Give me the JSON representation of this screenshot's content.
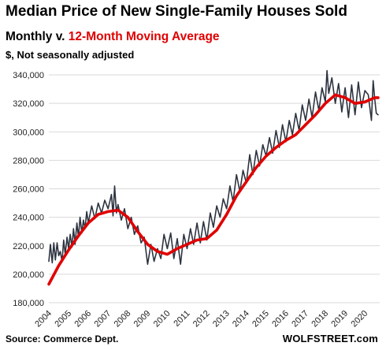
{
  "header": {
    "title": "Median Price of New Single-Family Houses Sold",
    "subtitle_part1": "Monthly v. ",
    "subtitle_part2": "12-Month Moving Average",
    "units": "$, Not seasonally adjusted"
  },
  "footer": {
    "source": "Source: Commerce Dept.",
    "brand": "WOLFSTREET.com"
  },
  "colors": {
    "monthly": "#2d3340",
    "moving_average": "#e00000",
    "grid": "#d9d9d9"
  },
  "chart_data": {
    "type": "line",
    "title": "Median Price of New Single-Family Houses Sold",
    "ylim": [
      180000,
      345000
    ],
    "xlim": [
      2004,
      2020.75
    ],
    "y_ticks": [
      "180,000",
      "200,000",
      "220,000",
      "240,000",
      "260,000",
      "280,000",
      "300,000",
      "320,000",
      "340,000"
    ],
    "y_tick_values": [
      180000,
      200000,
      220000,
      240000,
      260000,
      280000,
      300000,
      320000,
      340000
    ],
    "x_ticks": [
      "2004",
      "2005",
      "2006",
      "2007",
      "2008",
      "2009",
      "2010",
      "2011",
      "2012",
      "2013",
      "2014",
      "2015",
      "2016",
      "2017",
      "2018",
      "2019",
      "2020"
    ],
    "grid": "horizontal",
    "series": [
      {
        "name": "Monthly",
        "x": [
          2004.0,
          2004.08,
          2004.17,
          2004.25,
          2004.33,
          2004.42,
          2004.5,
          2004.58,
          2004.67,
          2004.75,
          2004.83,
          2004.92,
          2005.0,
          2005.08,
          2005.17,
          2005.25,
          2005.33,
          2005.42,
          2005.5,
          2005.58,
          2005.67,
          2005.75,
          2005.83,
          2005.92,
          2006.0,
          2006.17,
          2006.33,
          2006.5,
          2006.67,
          2006.83,
          2007.0,
          2007.17,
          2007.25,
          2007.33,
          2007.42,
          2007.5,
          2007.67,
          2007.83,
          2008.0,
          2008.17,
          2008.33,
          2008.5,
          2008.67,
          2008.83,
          2009.0,
          2009.17,
          2009.33,
          2009.5,
          2009.67,
          2009.83,
          2010.0,
          2010.17,
          2010.33,
          2010.5,
          2010.67,
          2010.83,
          2011.0,
          2011.17,
          2011.33,
          2011.5,
          2011.67,
          2011.83,
          2012.0,
          2012.17,
          2012.33,
          2012.5,
          2012.67,
          2012.83,
          2013.0,
          2013.17,
          2013.33,
          2013.5,
          2013.67,
          2013.83,
          2014.0,
          2014.17,
          2014.33,
          2014.5,
          2014.67,
          2014.83,
          2015.0,
          2015.17,
          2015.33,
          2015.5,
          2015.67,
          2015.83,
          2016.0,
          2016.17,
          2016.33,
          2016.5,
          2016.67,
          2016.83,
          2017.0,
          2017.17,
          2017.33,
          2017.5,
          2017.67,
          2017.83,
          2018.0,
          2018.08,
          2018.17,
          2018.33,
          2018.5,
          2018.67,
          2018.83,
          2019.0,
          2019.17,
          2019.33,
          2019.5,
          2019.67,
          2019.83,
          2020.0,
          2020.17,
          2020.33,
          2020.42,
          2020.5,
          2020.58,
          2020.67
        ],
        "values": [
          209000,
          221000,
          208000,
          222000,
          210000,
          222000,
          213000,
          216000,
          209000,
          224000,
          214000,
          226000,
          218000,
          228000,
          219000,
          232000,
          221000,
          236000,
          226000,
          240000,
          229000,
          238000,
          232000,
          244000,
          236000,
          248000,
          239000,
          250000,
          243000,
          252000,
          246000,
          256000,
          241000,
          262000,
          243000,
          249000,
          238000,
          246000,
          232000,
          240000,
          228000,
          234000,
          222000,
          226000,
          207000,
          221000,
          209000,
          218000,
          211000,
          228000,
          218000,
          229000,
          211000,
          225000,
          207000,
          228000,
          218000,
          232000,
          221000,
          236000,
          222000,
          237000,
          224000,
          243000,
          233000,
          248000,
          240000,
          253000,
          246000,
          262000,
          251000,
          270000,
          258000,
          273000,
          264000,
          284000,
          270000,
          287000,
          276000,
          291000,
          283000,
          296000,
          285000,
          301000,
          289000,
          305000,
          293000,
          308000,
          298000,
          313000,
          301000,
          319000,
          308000,
          323000,
          310000,
          328000,
          315000,
          331000,
          321000,
          343000,
          327000,
          338000,
          320000,
          334000,
          314000,
          331000,
          310000,
          333000,
          312000,
          335000,
          317000,
          329000,
          326000,
          308000,
          336000,
          323000,
          313000,
          312000
        ]
      },
      {
        "name": "12-Month Moving Average",
        "x": [
          2004.0,
          2004.5,
          2005.0,
          2005.5,
          2006.0,
          2006.5,
          2007.0,
          2007.5,
          2008.0,
          2008.5,
          2009.0,
          2009.5,
          2010.0,
          2010.5,
          2011.0,
          2011.5,
          2012.0,
          2012.5,
          2013.0,
          2013.5,
          2014.0,
          2014.5,
          2015.0,
          2015.5,
          2016.0,
          2016.5,
          2017.0,
          2017.5,
          2018.0,
          2018.5,
          2019.0,
          2019.5,
          2020.0,
          2020.5,
          2020.67
        ],
        "values": [
          193000,
          206000,
          217000,
          227000,
          236000,
          242000,
          244000,
          245000,
          240000,
          230000,
          221000,
          216000,
          214000,
          218000,
          221000,
          224000,
          225000,
          231000,
          242000,
          255000,
          265000,
          275000,
          283000,
          289000,
          294000,
          298000,
          305000,
          312000,
          320000,
          326000,
          324000,
          320000,
          321000,
          324000,
          324000
        ]
      }
    ]
  }
}
